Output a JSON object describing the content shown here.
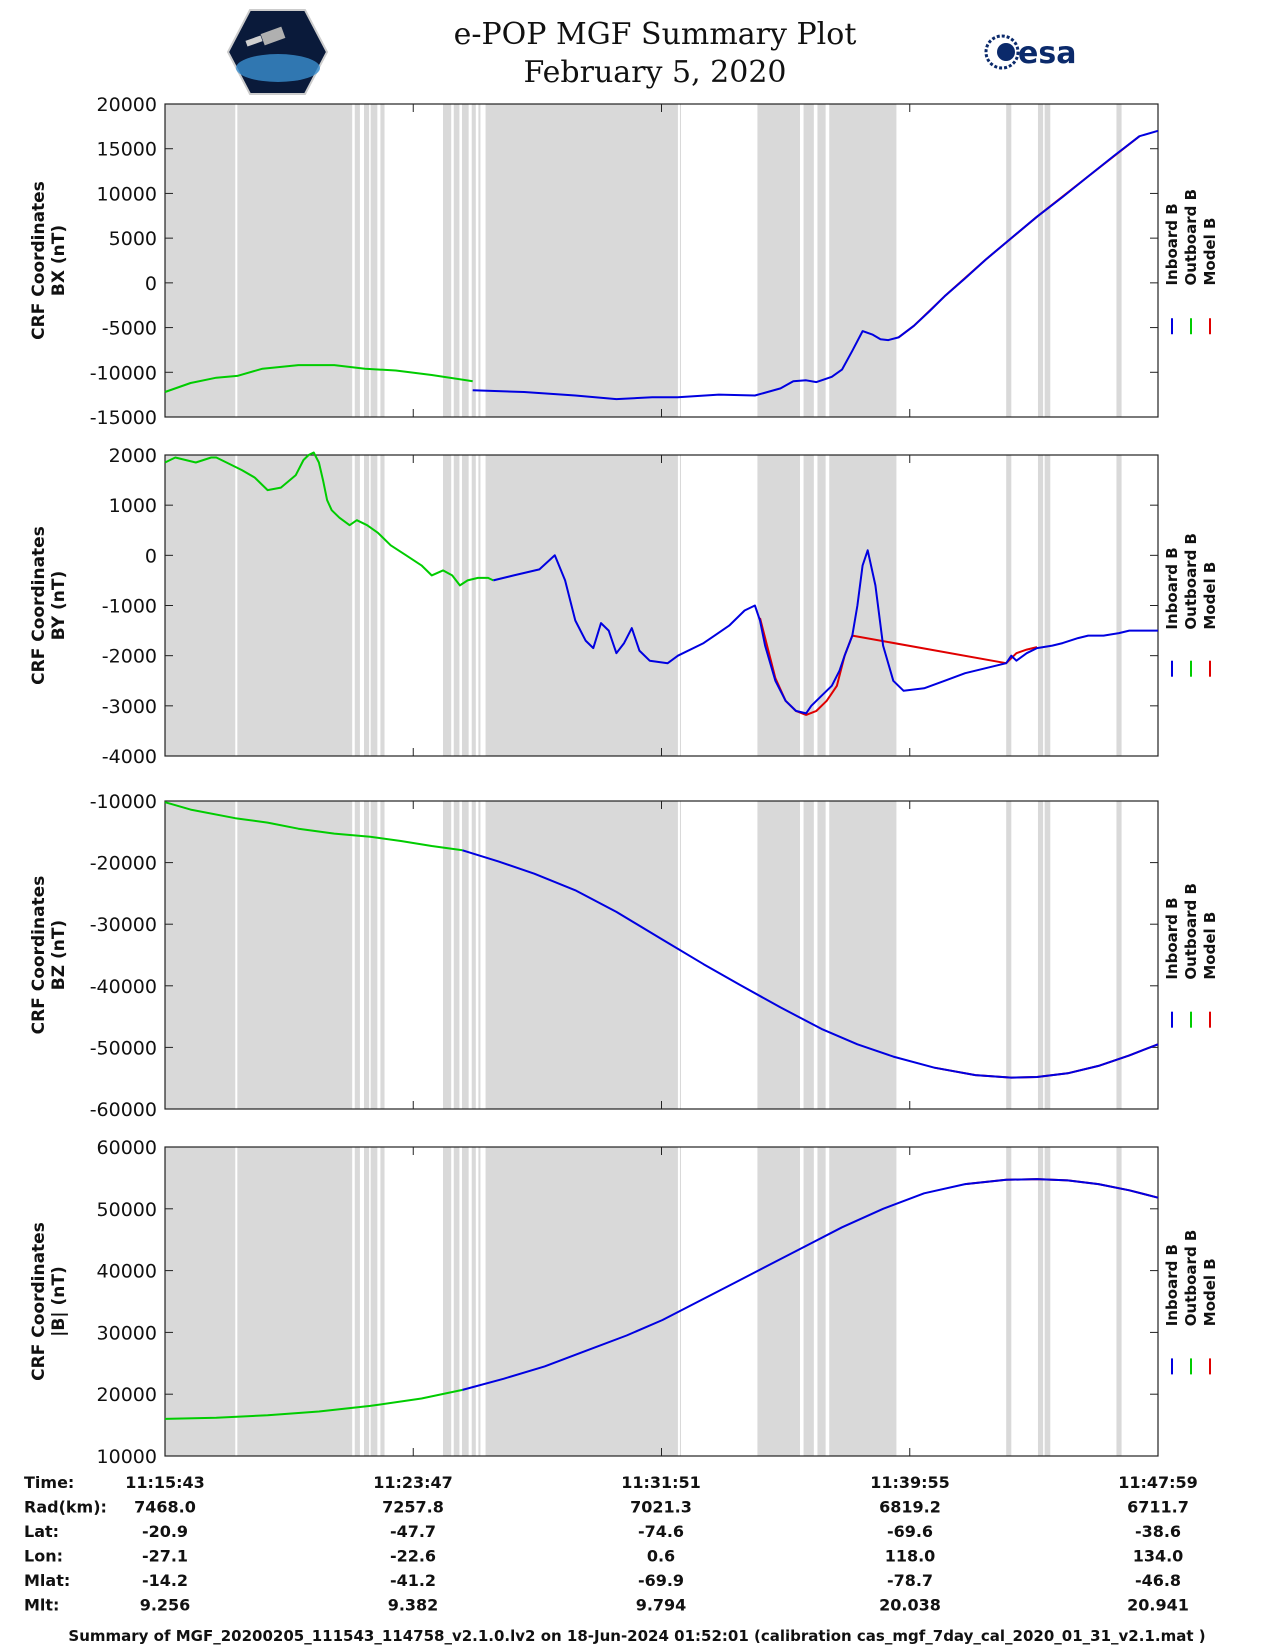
{
  "title": "e-POP MGF Summary Plot",
  "date": "February 5, 2020",
  "logo_text": "esa",
  "colors": {
    "inboard": "#0000e0",
    "outboard": "#00cc00",
    "model": "#e00000",
    "shade": "#d9d9d9",
    "esa_blue": "#0b2a6b"
  },
  "legend_labels": [
    "Inboard B",
    "Outboard B",
    "Model B"
  ],
  "chart_data": [
    {
      "type": "line",
      "ylabel_lines": [
        "CRF Coordinates",
        "BX (nT)"
      ],
      "ylim": [
        -15000,
        20000
      ],
      "yticks": [
        20000,
        15000,
        10000,
        5000,
        0,
        -5000,
        -10000,
        -15000
      ],
      "x_range_s": [
        0,
        1936
      ],
      "green_until_s": 600,
      "shaded_intervals_s": [
        [
          0,
          137
        ],
        [
          141,
          365
        ],
        [
          370,
          380
        ],
        [
          388,
          398
        ],
        [
          401,
          414
        ],
        [
          420,
          428
        ],
        [
          542,
          558
        ],
        [
          563,
          574
        ],
        [
          579,
          592
        ],
        [
          598,
          606
        ],
        [
          611,
          615
        ],
        [
          625,
          1000
        ],
        [
          1004,
          1006
        ],
        [
          1155,
          1238
        ],
        [
          1245,
          1265
        ],
        [
          1272,
          1288
        ],
        [
          1295,
          1426
        ],
        [
          1640,
          1650
        ],
        [
          1702,
          1712
        ],
        [
          1715,
          1726
        ],
        [
          1855,
          1865
        ]
      ],
      "series": [
        {
          "name": "Inboard B",
          "t": [
            600,
            700,
            800,
            880,
            950,
            1000,
            1080,
            1150,
            1200,
            1225,
            1250,
            1270,
            1300,
            1320,
            1340,
            1360,
            1380,
            1395,
            1410,
            1430,
            1460,
            1490,
            1520,
            1560,
            1600,
            1650,
            1700,
            1750,
            1800,
            1850,
            1900,
            1936
          ],
          "v": [
            -12000,
            -12200,
            -12600,
            -13000,
            -12800,
            -12800,
            -12500,
            -12600,
            -11800,
            -11000,
            -10900,
            -11100,
            -10500,
            -9700,
            -7600,
            -5400,
            -5800,
            -6300,
            -6400,
            -6100,
            -4800,
            -3200,
            -1500,
            500,
            2600,
            5000,
            7400,
            9600,
            11900,
            14200,
            16400,
            17000
          ]
        },
        {
          "name": "Outboard B",
          "t": [
            0,
            50,
            100,
            141,
            190,
            260,
            330,
            390,
            450,
            520,
            600
          ],
          "v": [
            -12200,
            -11200,
            -10600,
            -10400,
            -9600,
            -9200,
            -9200,
            -9600,
            -9800,
            -10300,
            -11000
          ]
        },
        {
          "name": "Model B",
          "t": [
            1430,
            1460,
            1520,
            1600,
            1700,
            1800,
            1900
          ],
          "v": [
            -6100,
            -4800,
            -1500,
            2600,
            7400,
            11900,
            16400
          ]
        }
      ]
    },
    {
      "type": "line",
      "ylabel_lines": [
        "CRF Coordinates",
        "BY (nT)"
      ],
      "ylim": [
        -4000,
        2000
      ],
      "yticks": [
        2000,
        1000,
        0,
        -1000,
        -2000,
        -3000,
        -4000
      ],
      "x_range_s": [
        0,
        1936
      ],
      "green_until_s": 640,
      "shaded_intervals_s": [
        [
          0,
          137
        ],
        [
          141,
          365
        ],
        [
          370,
          380
        ],
        [
          388,
          398
        ],
        [
          401,
          414
        ],
        [
          420,
          428
        ],
        [
          542,
          558
        ],
        [
          563,
          574
        ],
        [
          579,
          592
        ],
        [
          598,
          606
        ],
        [
          611,
          615
        ],
        [
          625,
          1000
        ],
        [
          1004,
          1006
        ],
        [
          1155,
          1238
        ],
        [
          1245,
          1265
        ],
        [
          1272,
          1288
        ],
        [
          1295,
          1426
        ],
        [
          1640,
          1650
        ],
        [
          1702,
          1712
        ],
        [
          1715,
          1726
        ],
        [
          1855,
          1865
        ]
      ],
      "series": [
        {
          "name": "Inboard B",
          "t": [
            640,
            680,
            730,
            760,
            780,
            800,
            820,
            835,
            850,
            865,
            880,
            895,
            910,
            925,
            945,
            980,
            1000,
            1050,
            1100,
            1130,
            1150,
            1160,
            1170,
            1190,
            1210,
            1230,
            1250,
            1260,
            1280,
            1300,
            1315,
            1325,
            1340,
            1350,
            1360,
            1370,
            1385,
            1400,
            1420,
            1440,
            1480,
            1520,
            1560,
            1600,
            1640,
            1650,
            1660,
            1680,
            1700,
            1730,
            1750,
            1780,
            1800,
            1830,
            1860,
            1880,
            1900,
            1936
          ],
          "v": [
            -500,
            -400,
            -280,
            0,
            -500,
            -1300,
            -1700,
            -1850,
            -1350,
            -1500,
            -1950,
            -1750,
            -1450,
            -1900,
            -2100,
            -2150,
            -2000,
            -1750,
            -1400,
            -1100,
            -1000,
            -1300,
            -1800,
            -2500,
            -2900,
            -3100,
            -3150,
            -3000,
            -2800,
            -2600,
            -2300,
            -2000,
            -1600,
            -1000,
            -200,
            100,
            -600,
            -1800,
            -2500,
            -2700,
            -2650,
            -2500,
            -2350,
            -2250,
            -2150,
            -2000,
            -2100,
            -1950,
            -1850,
            -1800,
            -1750,
            -1650,
            -1600,
            -1600,
            -1550,
            -1500,
            -1500,
            -1500
          ]
        },
        {
          "name": "Outboard B",
          "t": [
            0,
            20,
            60,
            90,
            100,
            120,
            150,
            175,
            200,
            226,
            255,
            270,
            280,
            290,
            300,
            308,
            316,
            325,
            340,
            360,
            374,
            394,
            415,
            440,
            470,
            500,
            520,
            542,
            560,
            575,
            590,
            610,
            630,
            640
          ],
          "v": [
            1850,
            1950,
            1850,
            1950,
            1950,
            1850,
            1700,
            1550,
            1300,
            1350,
            1600,
            1900,
            2000,
            2050,
            1850,
            1500,
            1100,
            900,
            750,
            600,
            700,
            600,
            450,
            200,
            0,
            -200,
            -400,
            -300,
            -400,
            -600,
            -500,
            -450,
            -450,
            -500
          ]
        },
        {
          "name": "Model B",
          "t": [
            1160,
            1190,
            1210,
            1230,
            1250,
            1270,
            1290,
            1310,
            1325,
            1340,
            1640,
            1660,
            1680,
            1700
          ],
          "v": [
            -1250,
            -2450,
            -2900,
            -3100,
            -3180,
            -3100,
            -2900,
            -2600,
            -2000,
            -1600,
            -2150,
            -1950,
            -1880,
            -1830
          ]
        }
      ]
    },
    {
      "type": "line",
      "ylabel_lines": [
        "CRF Coordinates",
        "BZ (nT)"
      ],
      "ylim": [
        -60000,
        -10000
      ],
      "yticks": [
        -10000,
        -20000,
        -30000,
        -40000,
        -50000,
        -60000
      ],
      "x_range_s": [
        0,
        1936
      ],
      "green_until_s": 580,
      "shaded_intervals_s": [
        [
          0,
          137
        ],
        [
          141,
          365
        ],
        [
          370,
          380
        ],
        [
          388,
          398
        ],
        [
          401,
          414
        ],
        [
          420,
          428
        ],
        [
          542,
          558
        ],
        [
          563,
          574
        ],
        [
          579,
          592
        ],
        [
          598,
          606
        ],
        [
          611,
          615
        ],
        [
          625,
          1000
        ],
        [
          1004,
          1006
        ],
        [
          1155,
          1238
        ],
        [
          1245,
          1265
        ],
        [
          1272,
          1288
        ],
        [
          1295,
          1426
        ],
        [
          1640,
          1650
        ],
        [
          1702,
          1712
        ],
        [
          1715,
          1726
        ],
        [
          1855,
          1865
        ]
      ],
      "series": [
        {
          "name": "Inboard B",
          "t": [
            580,
            650,
            720,
            800,
            880,
            970,
            1050,
            1120,
            1200,
            1280,
            1350,
            1420,
            1500,
            1580,
            1650,
            1700,
            1760,
            1820,
            1880,
            1936
          ],
          "v": [
            -18000,
            -19800,
            -21800,
            -24500,
            -28000,
            -32500,
            -36500,
            -39800,
            -43500,
            -47000,
            -49500,
            -51500,
            -53300,
            -54500,
            -54900,
            -54800,
            -54200,
            -53000,
            -51300,
            -49500
          ]
        },
        {
          "name": "Outboard B",
          "t": [
            0,
            50,
            137,
            200,
            260,
            330,
            400,
            460,
            520,
            580
          ],
          "v": [
            -10200,
            -11400,
            -12800,
            -13500,
            -14500,
            -15300,
            -15800,
            -16500,
            -17300,
            -18000
          ]
        },
        {
          "name": "Model B",
          "t": [
            1500,
            1580,
            1650,
            1700,
            1760,
            1820,
            1880,
            1936
          ],
          "v": [
            -53300,
            -54500,
            -54900,
            -54800,
            -54200,
            -53000,
            -51300,
            -49500
          ]
        }
      ]
    },
    {
      "type": "line",
      "ylabel_lines": [
        "CRF Coordinates",
        "|B| (nT)"
      ],
      "ylim": [
        10000,
        60000
      ],
      "yticks": [
        60000,
        50000,
        40000,
        30000,
        20000,
        10000
      ],
      "x_range_s": [
        0,
        1936
      ],
      "green_until_s": 580,
      "shaded_intervals_s": [
        [
          0,
          137
        ],
        [
          141,
          365
        ],
        [
          370,
          380
        ],
        [
          388,
          398
        ],
        [
          401,
          414
        ],
        [
          420,
          428
        ],
        [
          542,
          558
        ],
        [
          563,
          574
        ],
        [
          579,
          592
        ],
        [
          598,
          606
        ],
        [
          611,
          615
        ],
        [
          625,
          1000
        ],
        [
          1004,
          1006
        ],
        [
          1155,
          1238
        ],
        [
          1245,
          1265
        ],
        [
          1272,
          1288
        ],
        [
          1295,
          1426
        ],
        [
          1640,
          1650
        ],
        [
          1702,
          1712
        ],
        [
          1715,
          1726
        ],
        [
          1855,
          1865
        ]
      ],
      "series": [
        {
          "name": "Inboard B",
          "t": [
            580,
            660,
            740,
            820,
            900,
            970,
            1040,
            1110,
            1180,
            1250,
            1320,
            1400,
            1480,
            1560,
            1640,
            1700,
            1760,
            1820,
            1880,
            1936
          ],
          "v": [
            20700,
            22500,
            24500,
            27000,
            29500,
            32000,
            35000,
            38000,
            41000,
            44000,
            47000,
            50000,
            52500,
            54000,
            54700,
            54800,
            54600,
            54000,
            53000,
            51800
          ]
        },
        {
          "name": "Outboard B",
          "t": [
            0,
            100,
            200,
            300,
            400,
            500,
            580
          ],
          "v": [
            16000,
            16200,
            16600,
            17200,
            18100,
            19300,
            20700
          ]
        },
        {
          "name": "Model B",
          "t": [
            1560,
            1640,
            1700,
            1760,
            1820,
            1880,
            1936
          ],
          "v": [
            54000,
            54700,
            54800,
            54600,
            54000,
            53000,
            51800
          ]
        }
      ]
    }
  ],
  "time_ticks_s": [
    0,
    484,
    968,
    1452,
    1936
  ],
  "table": {
    "rows": [
      {
        "label": "Time:",
        "values": [
          "11:15:43",
          "11:23:47",
          "11:31:51",
          "11:39:55",
          "11:47:59"
        ]
      },
      {
        "label": "Rad(km):",
        "values": [
          "7468.0",
          "7257.8",
          "7021.3",
          "6819.2",
          "6711.7"
        ]
      },
      {
        "label": "Lat:",
        "values": [
          "-20.9",
          "-47.7",
          "-74.6",
          "-69.6",
          "-38.6"
        ]
      },
      {
        "label": "Lon:",
        "values": [
          "-27.1",
          "-22.6",
          "0.6",
          "118.0",
          "134.0"
        ]
      },
      {
        "label": "Mlat:",
        "values": [
          "-14.2",
          "-41.2",
          "-69.9",
          "-78.7",
          "-46.8"
        ]
      },
      {
        "label": "Mlt:",
        "values": [
          "9.256",
          "9.382",
          "9.794",
          "20.038",
          "20.941"
        ]
      }
    ]
  },
  "footer": "Summary of MGF_20200205_111543_114758_v2.1.0.lv2 on 18-Jun-2024 01:52:01 (calibration cas_mgf_7day_cal_2020_01_31_v2.1.mat )"
}
